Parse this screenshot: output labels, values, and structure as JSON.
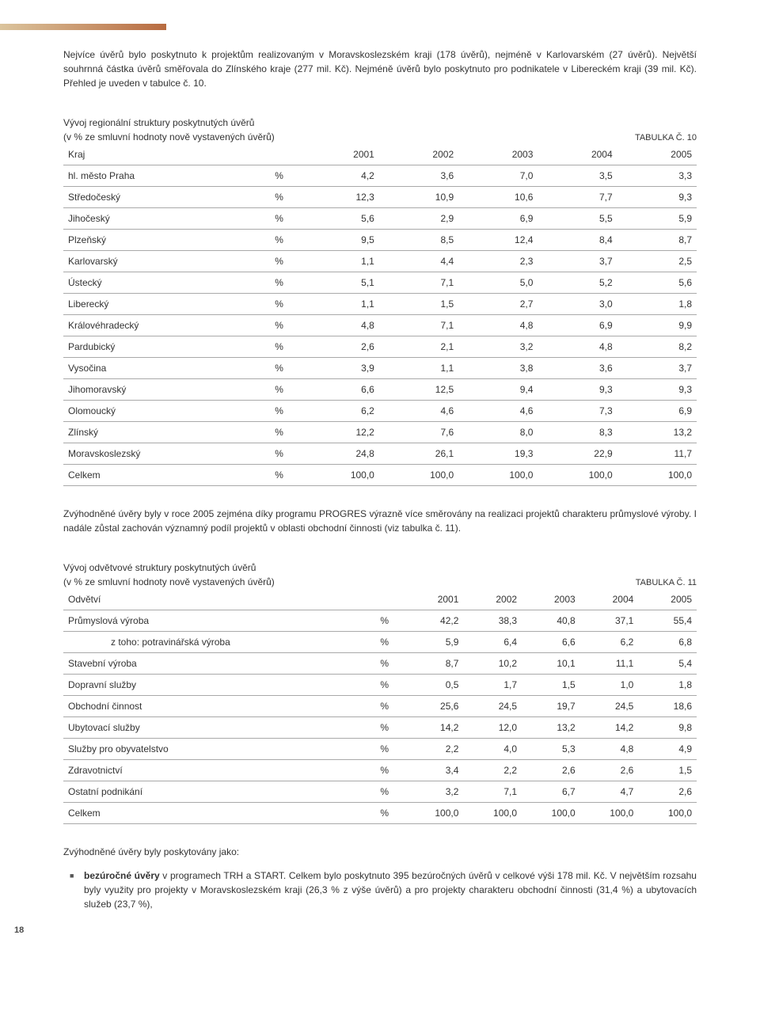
{
  "p1": "Nejvíce úvěrů bylo poskytnuto k projektům realizovaným v Moravskoslezském kraji (178 úvěrů), nejméně v Karlovarském (27 úvěrů). Největší souhrnná částka úvěrů směřovala do Zlínského kraje (277 mil. Kč). Nejméně úvěrů bylo poskytnuto pro podnikatele v Libereckém kraji (39 mil. Kč). Přehled je uveden v tabulce č. 10.",
  "table1": {
    "title_line1": "Vývoj regionální struktury poskytnutých úvěrů",
    "title_line2": "(v % ze smluvní hodnoty nově vystavených úvěrů)",
    "label": "TABULKA Č. 10",
    "header0": "Kraj",
    "years": [
      "2001",
      "2002",
      "2003",
      "2004",
      "2005"
    ],
    "rows": [
      {
        "name": "hl. město Praha",
        "u": "%",
        "v": [
          "4,2",
          "3,6",
          "7,0",
          "3,5",
          "3,3"
        ]
      },
      {
        "name": "Středočeský",
        "u": "%",
        "v": [
          "12,3",
          "10,9",
          "10,6",
          "7,7",
          "9,3"
        ]
      },
      {
        "name": "Jihočeský",
        "u": "%",
        "v": [
          "5,6",
          "2,9",
          "6,9",
          "5,5",
          "5,9"
        ]
      },
      {
        "name": "Plzeňský",
        "u": "%",
        "v": [
          "9,5",
          "8,5",
          "12,4",
          "8,4",
          "8,7"
        ]
      },
      {
        "name": "Karlovarský",
        "u": "%",
        "v": [
          "1,1",
          "4,4",
          "2,3",
          "3,7",
          "2,5"
        ]
      },
      {
        "name": "Ústecký",
        "u": "%",
        "v": [
          "5,1",
          "7,1",
          "5,0",
          "5,2",
          "5,6"
        ]
      },
      {
        "name": "Liberecký",
        "u": "%",
        "v": [
          "1,1",
          "1,5",
          "2,7",
          "3,0",
          "1,8"
        ]
      },
      {
        "name": "Královéhradecký",
        "u": "%",
        "v": [
          "4,8",
          "7,1",
          "4,8",
          "6,9",
          "9,9"
        ]
      },
      {
        "name": "Pardubický",
        "u": "%",
        "v": [
          "2,6",
          "2,1",
          "3,2",
          "4,8",
          "8,2"
        ]
      },
      {
        "name": "Vysočina",
        "u": "%",
        "v": [
          "3,9",
          "1,1",
          "3,8",
          "3,6",
          "3,7"
        ]
      },
      {
        "name": "Jihomoravský",
        "u": "%",
        "v": [
          "6,6",
          "12,5",
          "9,4",
          "9,3",
          "9,3"
        ]
      },
      {
        "name": "Olomoucký",
        "u": "%",
        "v": [
          "6,2",
          "4,6",
          "4,6",
          "7,3",
          "6,9"
        ]
      },
      {
        "name": "Zlínský",
        "u": "%",
        "v": [
          "12,2",
          "7,6",
          "8,0",
          "8,3",
          "13,2"
        ]
      },
      {
        "name": "Moravskoslezský",
        "u": "%",
        "v": [
          "24,8",
          "26,1",
          "19,3",
          "22,9",
          "11,7"
        ]
      },
      {
        "name": "Celkem",
        "u": "%",
        "v": [
          "100,0",
          "100,0",
          "100,0",
          "100,0",
          "100,0"
        ]
      }
    ]
  },
  "p2": "Zvýhodněné úvěry byly v roce 2005 zejména díky programu PROGRES výrazně více směrovány na realizaci projektů charakteru průmyslové výroby. I nadále zůstal zachován významný podíl projektů v oblasti obchodní činnosti (viz tabulka č. 11).",
  "table2": {
    "title_line1": "Vývoj odvětvové struktury poskytnutých úvěrů",
    "title_line2": "(v % ze smluvní hodnoty nově vystavených úvěrů)",
    "label": "TABULKA Č. 11",
    "header0": "Odvětví",
    "years": [
      "2001",
      "2002",
      "2003",
      "2004",
      "2005"
    ],
    "rows": [
      {
        "name": "Průmyslová výroba",
        "u": "%",
        "v": [
          "42,2",
          "38,3",
          "40,8",
          "37,1",
          "55,4"
        ]
      },
      {
        "name": "z toho: potravinářská výroba",
        "indent": true,
        "u": "%",
        "v": [
          "5,9",
          "6,4",
          "6,6",
          "6,2",
          "6,8"
        ]
      },
      {
        "name": "Stavební výroba",
        "u": "%",
        "v": [
          "8,7",
          "10,2",
          "10,1",
          "11,1",
          "5,4"
        ]
      },
      {
        "name": "Dopravní služby",
        "u": "%",
        "v": [
          "0,5",
          "1,7",
          "1,5",
          "1,0",
          "1,8"
        ]
      },
      {
        "name": "Obchodní činnost",
        "u": "%",
        "v": [
          "25,6",
          "24,5",
          "19,7",
          "24,5",
          "18,6"
        ]
      },
      {
        "name": "Ubytovací služby",
        "u": "%",
        "v": [
          "14,2",
          "12,0",
          "13,2",
          "14,2",
          "9,8"
        ]
      },
      {
        "name": "Služby pro obyvatelstvo",
        "u": "%",
        "v": [
          "2,2",
          "4,0",
          "5,3",
          "4,8",
          "4,9"
        ]
      },
      {
        "name": "Zdravotnictví",
        "u": "%",
        "v": [
          "3,4",
          "2,2",
          "2,6",
          "2,6",
          "1,5"
        ]
      },
      {
        "name": "Ostatní podnikání",
        "u": "%",
        "v": [
          "3,2",
          "7,1",
          "6,7",
          "4,7",
          "2,6"
        ]
      },
      {
        "name": "Celkem",
        "u": "%",
        "v": [
          "100,0",
          "100,0",
          "100,0",
          "100,0",
          "100,0"
        ]
      }
    ]
  },
  "list_intro": "Zvýhodněné úvěry byly poskytovány jako:",
  "bullet_bold": "bezúročné úvěry",
  "bullet_rest": " v programech TRH a START. Celkem bylo poskytnuto 395 bezúročných úvěrů v celkové výši 178 mil. Kč. V největším rozsahu byly využity pro projekty v Moravskoslezském kraji (26,3 % z výše úvěrů) a pro projekty charakteru obchodní činnosti (31,4 %) a ubytovacích služeb (23,7 %),",
  "page_number": "18"
}
